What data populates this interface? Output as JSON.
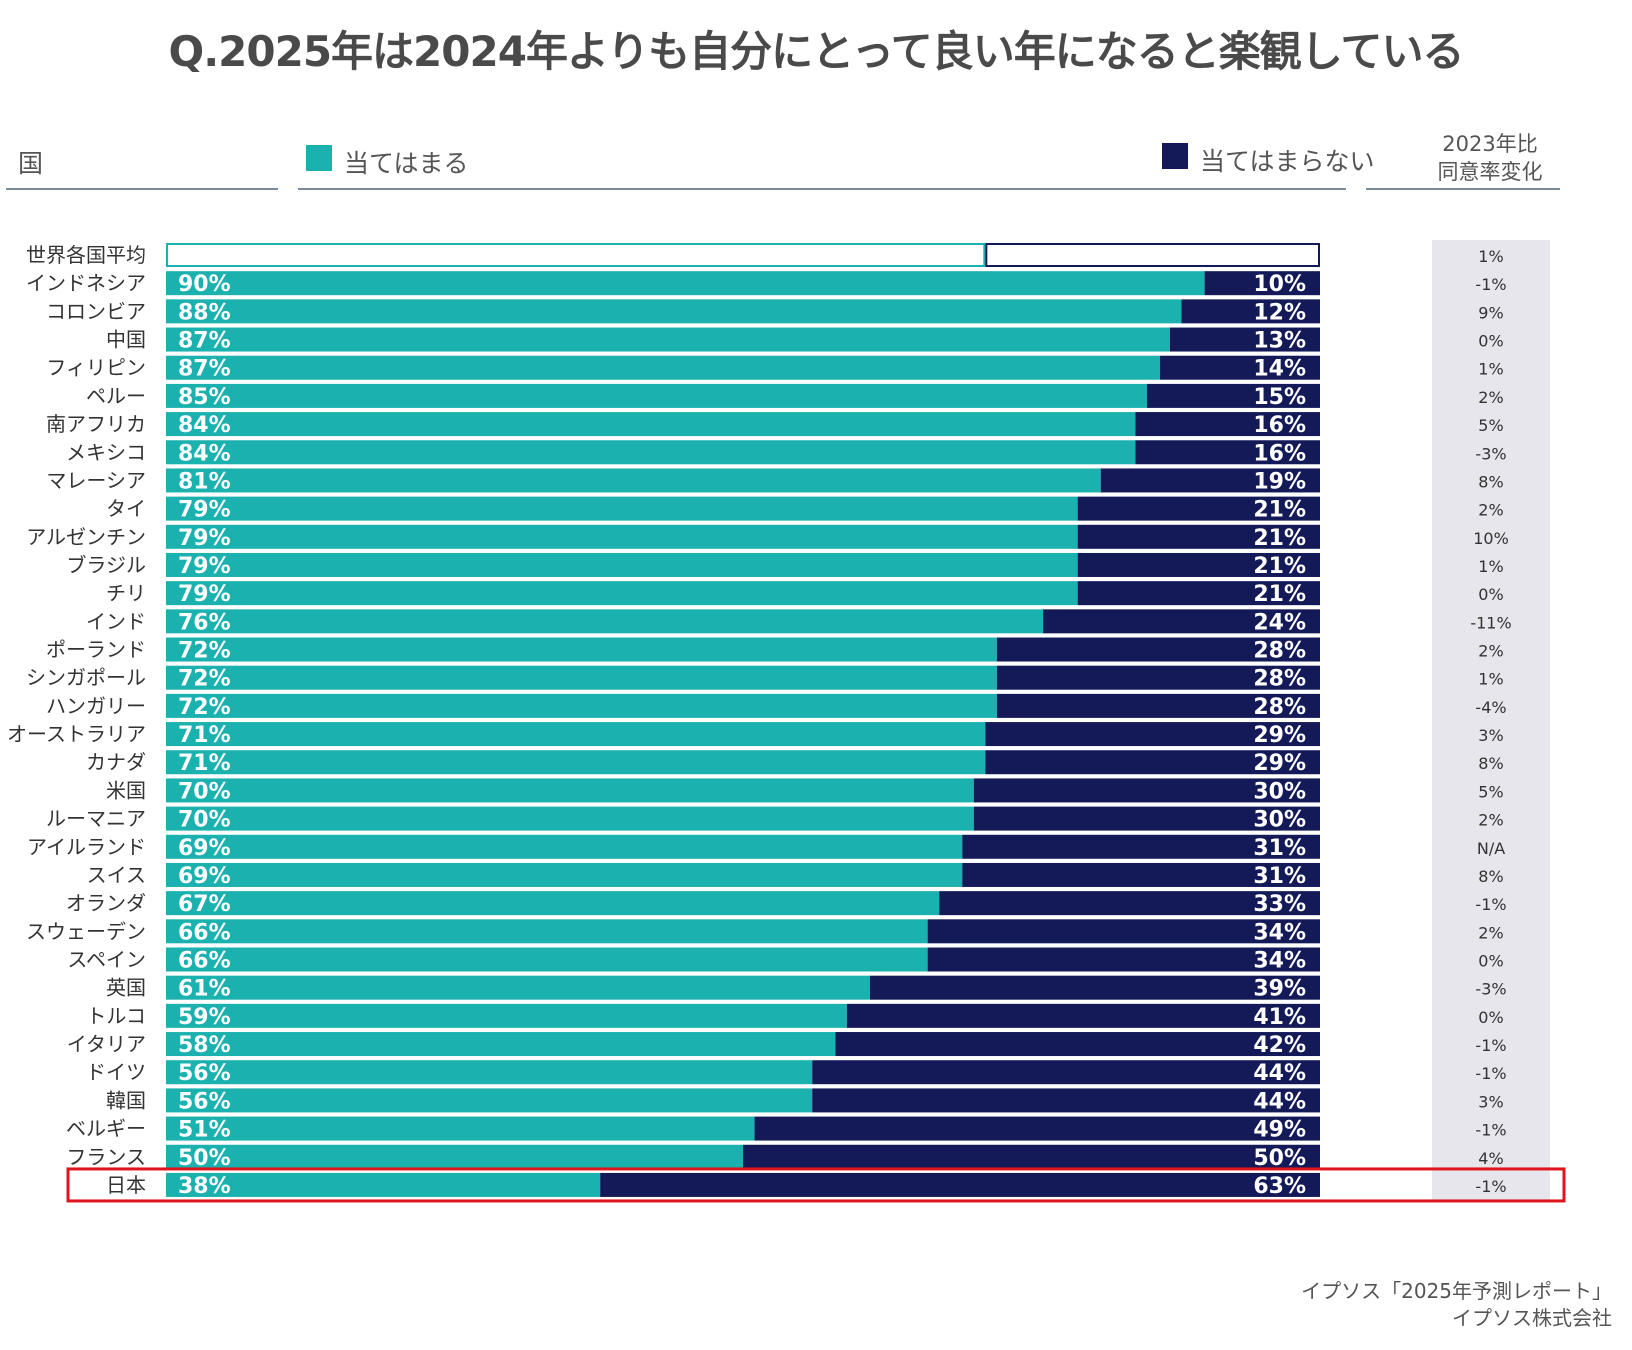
{
  "title": "Q.2025年は2024年よりも自分にとって良い年になると楽観している",
  "header": {
    "country_label": "国",
    "agree_label": "当てはまる",
    "disagree_label": "当てはまらない",
    "change_label_line1": "2023年比",
    "change_label_line2": "同意率変化"
  },
  "colors": {
    "agree": "#1bb1ae",
    "disagree": "#141a57",
    "change_bg": "#e6e6ec",
    "highlight": "#e0141c"
  },
  "source": {
    "line1": "イプソス「2025年予測レポート」",
    "line2": "イプソス株式会社"
  },
  "chart_data": {
    "type": "bar",
    "stacked": true,
    "orientation": "horizontal",
    "title": "Q.2025年は2024年よりも自分にとって良い年になると楽観している",
    "categories": [
      "世界各国平均",
      "インドネシア",
      "コロンビア",
      "中国",
      "フィリピン",
      "ペルー",
      "南アフリカ",
      "メキシコ",
      "マレーシア",
      "タイ",
      "アルゼンチン",
      "ブラジル",
      "チリ",
      "インド",
      "ポーランド",
      "シンガポール",
      "ハンガリー",
      "オーストラリア",
      "カナダ",
      "米国",
      "ルーマニア",
      "アイルランド",
      "スイス",
      "オランダ",
      "スウェーデン",
      "スペイン",
      "英国",
      "トルコ",
      "イタリア",
      "ドイツ",
      "韓国",
      "ベルギー",
      "フランス",
      "日本"
    ],
    "series": [
      {
        "name": "当てはまる",
        "values": [
          71,
          90,
          88,
          87,
          87,
          85,
          84,
          84,
          81,
          79,
          79,
          79,
          79,
          76,
          72,
          72,
          72,
          71,
          71,
          70,
          70,
          69,
          69,
          67,
          66,
          66,
          61,
          59,
          58,
          56,
          56,
          51,
          50,
          38
        ]
      },
      {
        "name": "当てはまらない",
        "values": [
          29,
          10,
          12,
          13,
          14,
          15,
          16,
          16,
          19,
          21,
          21,
          21,
          21,
          24,
          28,
          28,
          28,
          29,
          29,
          30,
          30,
          31,
          31,
          33,
          34,
          34,
          39,
          41,
          42,
          44,
          44,
          49,
          50,
          63
        ]
      }
    ],
    "change_vs_2023": [
      "1%",
      "-1%",
      "9%",
      "0%",
      "1%",
      "2%",
      "5%",
      "-3%",
      "8%",
      "2%",
      "10%",
      "1%",
      "0%",
      "-11%",
      "2%",
      "1%",
      "-4%",
      "3%",
      "8%",
      "5%",
      "2%",
      "N/A",
      "8%",
      "-1%",
      "2%",
      "0%",
      "-3%",
      "0%",
      "-1%",
      "-1%",
      "3%",
      "-1%",
      "4%",
      "-1%"
    ],
    "highlighted_category": "日本",
    "outlined_category": "世界各国平均",
    "xlim": [
      0,
      100
    ],
    "legend": "top"
  }
}
